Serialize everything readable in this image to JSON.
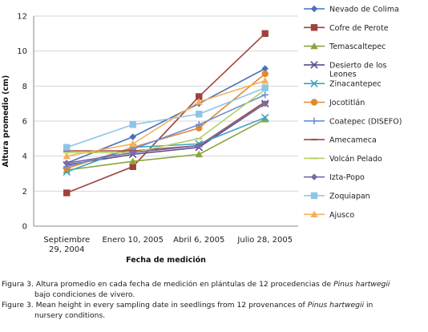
{
  "chart_data": {
    "type": "line",
    "categories": [
      "Septiembre 29, 2004",
      "Enero 10, 2005",
      "Abril 6, 2005",
      "Julio 28, 2005"
    ],
    "category_lines": [
      [
        "Septiembre",
        "29, 2004"
      ],
      [
        "Enero 10, 2005"
      ],
      [
        "Abril 6, 2005"
      ],
      [
        "Julio 28, 2005"
      ]
    ],
    "xlabel": "Fecha de medición",
    "ylabel": "Altura promedio (cm)",
    "ylim": [
      0,
      12
    ],
    "yticks": [
      0,
      2,
      4,
      6,
      8,
      10,
      12
    ],
    "grid": true,
    "legend_placement": "right",
    "series": [
      {
        "name": "Nevado de Colima",
        "legend_lines": [
          "Nevado de Colima"
        ],
        "color": "#4a6fb5",
        "marker": "diamond",
        "values": [
          3.6,
          5.1,
          7.0,
          9.0
        ]
      },
      {
        "name": "Cofre de Perote",
        "legend_lines": [
          "Cofre de Perote"
        ],
        "color": "#a0413d",
        "marker": "square",
        "values": [
          1.9,
          3.4,
          7.4,
          11.0
        ]
      },
      {
        "name": "Temascaltepec",
        "legend_lines": [
          "Temascaltepec"
        ],
        "color": "#8aa63c",
        "marker": "triangle",
        "values": [
          3.2,
          3.7,
          4.1,
          6.1
        ]
      },
      {
        "name": "Desierto de los Leones",
        "legend_lines": [
          "Desierto de los",
          "Leones"
        ],
        "color": "#5e4b8b",
        "marker": "x",
        "values": [
          3.5,
          4.1,
          4.5,
          7.0
        ]
      },
      {
        "name": "Zinacantepec",
        "legend_lines": [
          "Zinacantepec"
        ],
        "color": "#3ea3c1",
        "marker": "x",
        "values": [
          3.1,
          4.5,
          4.7,
          6.2
        ]
      },
      {
        "name": "Jocotitlán",
        "legend_lines": [
          "Jocotitlán"
        ],
        "color": "#e08a2c",
        "marker": "circle",
        "values": [
          3.3,
          4.5,
          5.6,
          8.7
        ]
      },
      {
        "name": "Coatepec (DISEFO)",
        "legend_lines": [
          "Coatepec (DISEFO)"
        ],
        "color": "#6d8fd6",
        "marker": "plus",
        "values": [
          3.4,
          4.4,
          5.8,
          7.5
        ]
      },
      {
        "name": "Amecameca",
        "legend_lines": [
          "Amecameca"
        ],
        "color": "#a04b3a",
        "marker": "dash",
        "values": [
          4.3,
          4.3,
          4.6,
          7.1
        ]
      },
      {
        "name": "Volcán Pelado",
        "legend_lines": [
          "Volcán Pelado"
        ],
        "color": "#b5cf6b",
        "marker": "dash",
        "values": [
          4.2,
          4.2,
          5.0,
          7.8
        ]
      },
      {
        "name": "Izta-Popo",
        "legend_lines": [
          "Izta-Popo"
        ],
        "color": "#7a6aa6",
        "marker": "diamond",
        "values": [
          3.6,
          4.2,
          4.6,
          7.0
        ]
      },
      {
        "name": "Zoquiapan",
        "legend_lines": [
          "Zoquiapan"
        ],
        "color": "#8ec4e6",
        "marker": "square",
        "values": [
          4.5,
          5.8,
          6.4,
          7.9
        ]
      },
      {
        "name": "Ajusco",
        "legend_lines": [
          "Ajusco"
        ],
        "color": "#f4b15a",
        "marker": "triangle",
        "values": [
          4.0,
          4.7,
          7.1,
          8.3
        ]
      }
    ]
  },
  "caption": {
    "es_prefix": "Figura 3. Altura promedio en cada fecha de medición en plántulas de 12 procedencias de ",
    "es_species": "Pinus hartwegii",
    "es_suffix": "bajo condiciones de vivero.",
    "en_prefix": "Figure 3. Mean height in every sampling date in seedlings from 12 provenances of ",
    "en_species": "Pinus hartwegii",
    "en_mid": " in",
    "en_suffix": "nursery conditions."
  }
}
